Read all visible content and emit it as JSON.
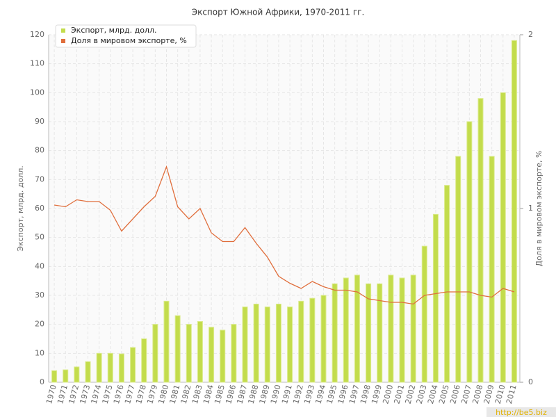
{
  "chart_data": {
    "type": "bar_line",
    "title": "Экспорт Южной Африки, 1970-2011 гг.",
    "y_label": "Экспорт, млрд. долл.",
    "y2_label": "Доля в мировом экспорте, %",
    "watermark": "http://be5.biz",
    "categories": [
      "1970",
      "1971",
      "1972",
      "1973",
      "1974",
      "1975",
      "1976",
      "1977",
      "1978",
      "1979",
      "1980",
      "1981",
      "1982",
      "1983",
      "1984",
      "1985",
      "1986",
      "1987",
      "1988",
      "1989",
      "1990",
      "1991",
      "1992",
      "1993",
      "1994",
      "1995",
      "1996",
      "1997",
      "1998",
      "1999",
      "2000",
      "2001",
      "2002",
      "2003",
      "2004",
      "2005",
      "2006",
      "2007",
      "2008",
      "2009",
      "2010",
      "2011"
    ],
    "series": [
      {
        "name": "Экспорт, млрд. долл.",
        "type": "bar",
        "color": "#c3dc4c",
        "values": [
          4,
          4.3,
          5.3,
          7.1,
          10,
          10,
          9.8,
          12,
          15,
          20,
          28,
          23,
          20,
          21,
          19,
          18,
          20,
          26,
          27,
          26,
          27,
          26,
          28,
          29,
          30,
          34,
          36,
          37,
          34,
          34,
          37,
          36,
          37,
          47,
          58,
          68,
          78,
          90,
          98,
          78,
          100,
          118
        ]
      },
      {
        "name": "Доля в мировом экспорте, %",
        "type": "line",
        "axis": "y2",
        "color": "#e06e3c",
        "values": [
          1.02,
          1.01,
          1.05,
          1.04,
          1.04,
          0.99,
          0.87,
          0.94,
          1.01,
          1.07,
          1.24,
          1.01,
          0.94,
          1.0,
          0.86,
          0.81,
          0.81,
          0.89,
          0.8,
          0.72,
          0.61,
          0.57,
          0.54,
          0.58,
          0.55,
          0.53,
          0.53,
          0.52,
          0.48,
          0.47,
          0.46,
          0.46,
          0.45,
          0.5,
          0.51,
          0.52,
          0.52,
          0.52,
          0.5,
          0.49,
          0.54,
          0.52
        ]
      }
    ],
    "ylim": [
      0,
      120
    ],
    "yticks": [
      0,
      10,
      20,
      30,
      40,
      50,
      60,
      70,
      80,
      90,
      100,
      110,
      120
    ],
    "y2lim": [
      0,
      2
    ],
    "y2ticks": [
      0,
      1,
      2
    ],
    "grid": true,
    "legend": "top-left"
  }
}
